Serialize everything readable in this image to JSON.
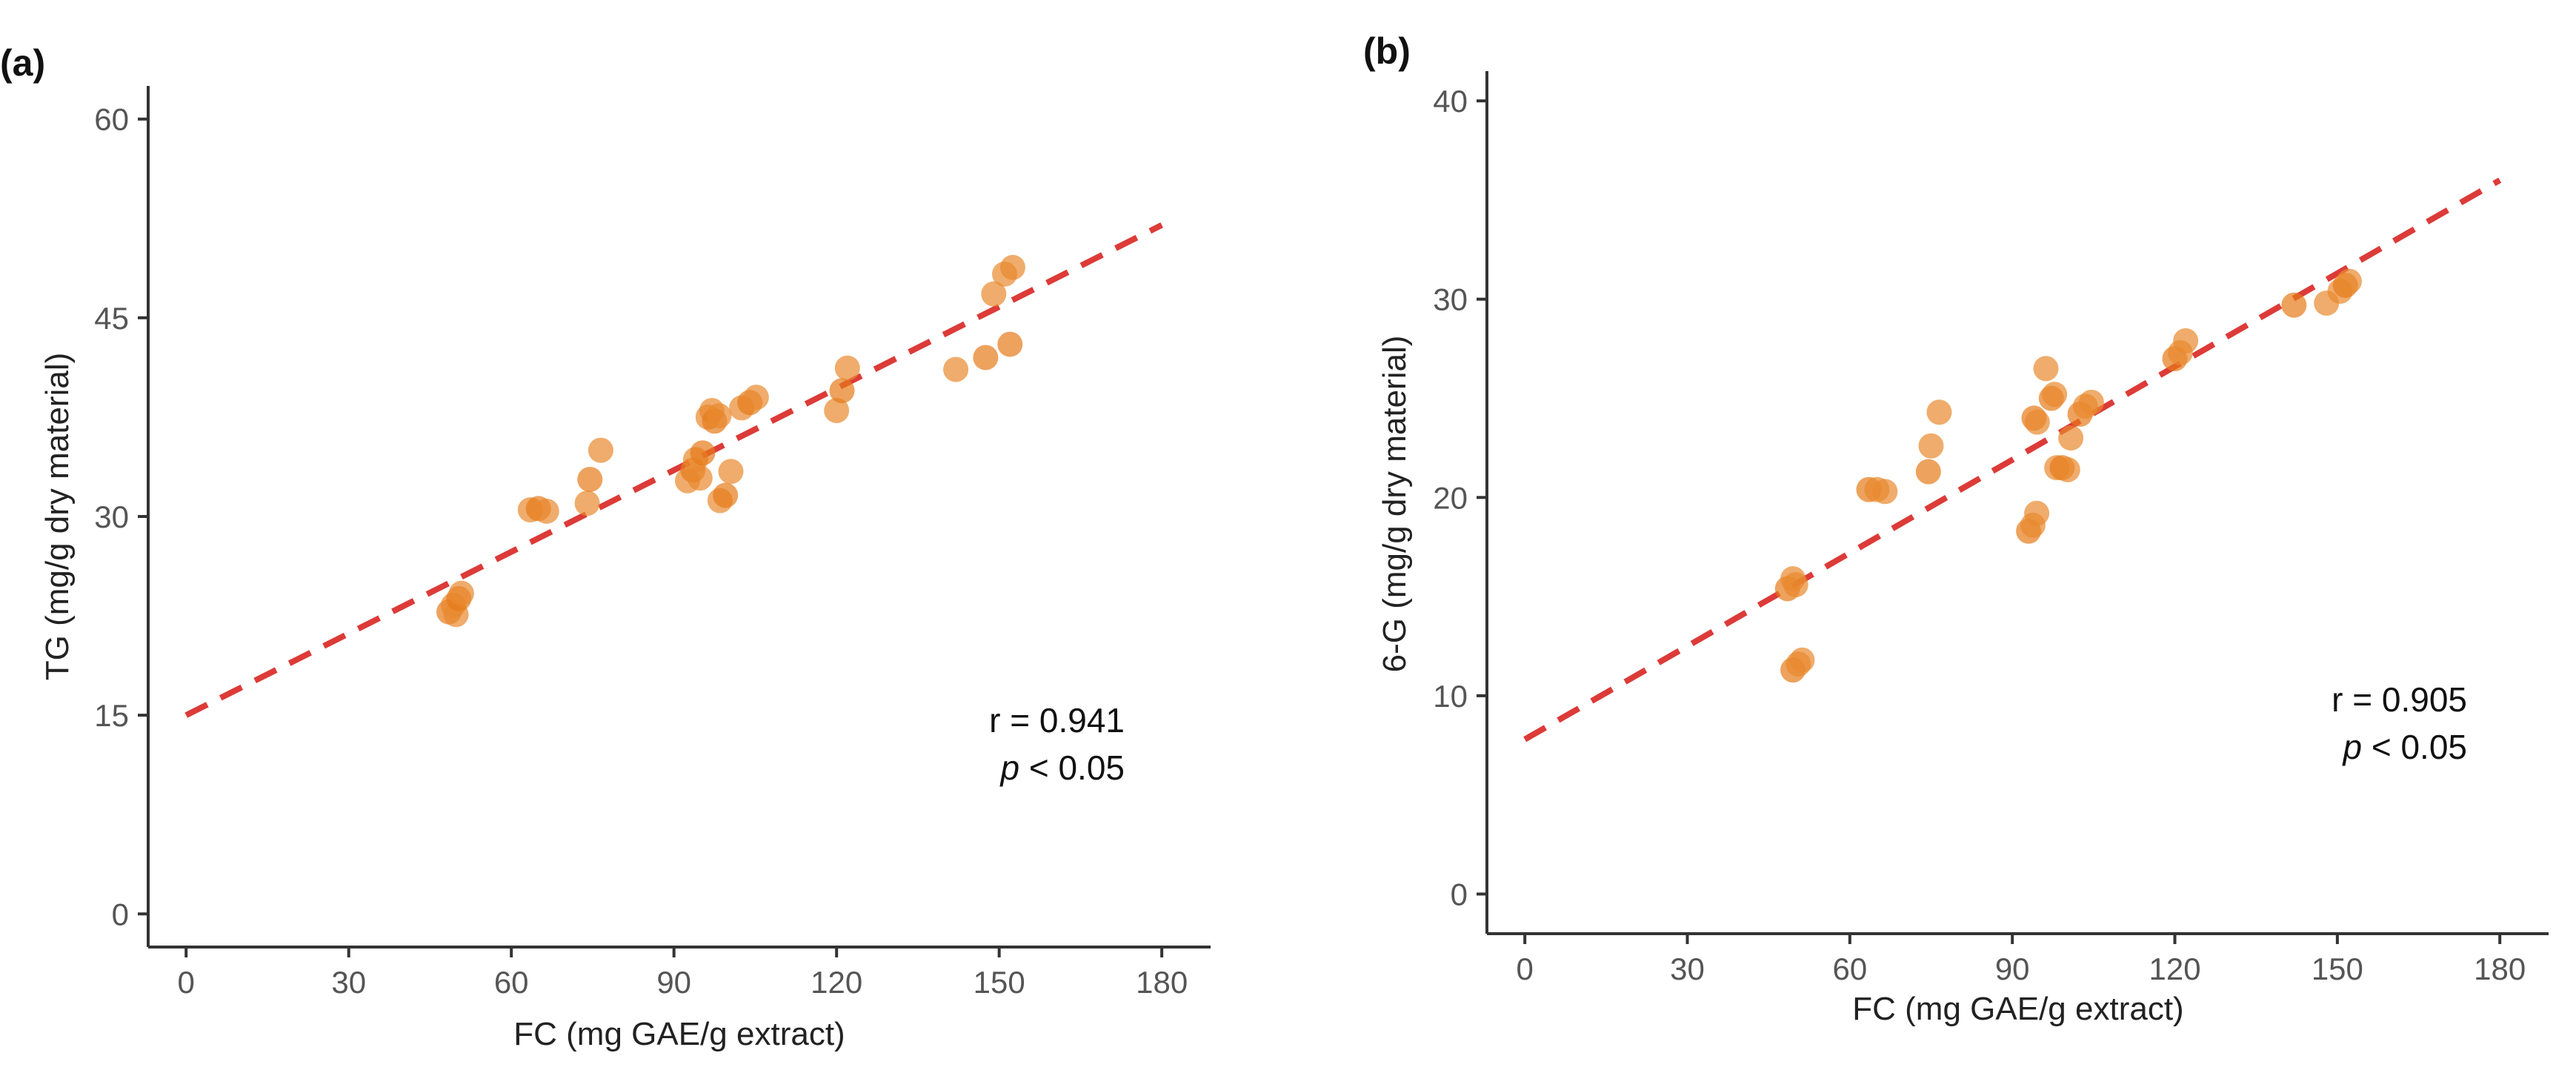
{
  "colors": {
    "point": "#e8892e",
    "point_dark": "#e67a1a",
    "fit_line": "#dc3b38",
    "axis": "#333333",
    "tick_text": "#555555",
    "label_text": "#222222"
  },
  "chart_data": [
    {
      "type": "scatter",
      "panel_label": "(a)",
      "xlabel": "FC (mg GAE/g extract)",
      "ylabel": "TG (mg/g dry material)",
      "xlim": [
        -7,
        189
      ],
      "ylim": [
        -2.5,
        62.5
      ],
      "x_ticks": [
        0,
        30,
        60,
        90,
        120,
        150,
        180
      ],
      "y_ticks": [
        0,
        15,
        30,
        45,
        60
      ],
      "fit_line": {
        "x": [
          0,
          180
        ],
        "y": [
          15,
          52
        ]
      },
      "annotation": {
        "r_text": "r = 0.941",
        "p_symbol": "p",
        "p_rest": " < 0.05"
      },
      "points": [
        {
          "x": 48.5,
          "y": 22.8
        },
        {
          "x": 49.3,
          "y": 23.3
        },
        {
          "x": 49.8,
          "y": 22.6
        },
        {
          "x": 50.3,
          "y": 23.8
        },
        {
          "x": 50.8,
          "y": 24.2
        },
        {
          "x": 63.5,
          "y": 30.5
        },
        {
          "x": 65,
          "y": 30.6
        },
        {
          "x": 66.5,
          "y": 30.4
        },
        {
          "x": 74,
          "y": 31
        },
        {
          "x": 74.5,
          "y": 32.8
        },
        {
          "x": 76.5,
          "y": 35
        },
        {
          "x": 92.5,
          "y": 32.7
        },
        {
          "x": 93.5,
          "y": 33.5
        },
        {
          "x": 94,
          "y": 34.3
        },
        {
          "x": 94.8,
          "y": 32.9
        },
        {
          "x": 95.3,
          "y": 34.8
        },
        {
          "x": 96.3,
          "y": 37.5
        },
        {
          "x": 97,
          "y": 38
        },
        {
          "x": 97.5,
          "y": 37.2
        },
        {
          "x": 98.3,
          "y": 37.6
        },
        {
          "x": 98.5,
          "y": 31.2
        },
        {
          "x": 99.5,
          "y": 31.6
        },
        {
          "x": 100.5,
          "y": 33.4
        },
        {
          "x": 102.5,
          "y": 38.2
        },
        {
          "x": 104,
          "y": 38.6
        },
        {
          "x": 105.2,
          "y": 39
        },
        {
          "x": 120,
          "y": 38
        },
        {
          "x": 121,
          "y": 39.5
        },
        {
          "x": 122,
          "y": 41.2
        },
        {
          "x": 142,
          "y": 41.1
        },
        {
          "x": 147.5,
          "y": 42
        },
        {
          "x": 149,
          "y": 46.8
        },
        {
          "x": 151,
          "y": 48.3
        },
        {
          "x": 152,
          "y": 43
        },
        {
          "x": 152.5,
          "y": 48.8
        }
      ]
    },
    {
      "type": "scatter",
      "panel_label": "(b)",
      "xlabel": "FC (mg GAE/g extract)",
      "ylabel": "6-G (mg/g dry material)",
      "xlim": [
        -7,
        189
      ],
      "ylim": [
        -2,
        41.5
      ],
      "x_ticks": [
        0,
        30,
        60,
        90,
        120,
        150,
        180
      ],
      "y_ticks": [
        0,
        10,
        20,
        30,
        40
      ],
      "fit_line": {
        "x": [
          0,
          180
        ],
        "y": [
          7.8,
          36
        ]
      },
      "annotation": {
        "r_text": "r = 0.905",
        "p_symbol": "p",
        "p_rest": " < 0.05"
      },
      "points": [
        {
          "x": 48.5,
          "y": 15.4
        },
        {
          "x": 49.5,
          "y": 15.9
        },
        {
          "x": 50,
          "y": 15.6
        },
        {
          "x": 49.5,
          "y": 11.3
        },
        {
          "x": 50.5,
          "y": 11.6
        },
        {
          "x": 51.2,
          "y": 11.8
        },
        {
          "x": 63.5,
          "y": 20.4
        },
        {
          "x": 65,
          "y": 20.4
        },
        {
          "x": 66.5,
          "y": 20.3
        },
        {
          "x": 74.5,
          "y": 21.3
        },
        {
          "x": 75,
          "y": 22.6
        },
        {
          "x": 76.5,
          "y": 24.3
        },
        {
          "x": 93,
          "y": 18.3
        },
        {
          "x": 93.8,
          "y": 18.6
        },
        {
          "x": 94.5,
          "y": 19.2
        },
        {
          "x": 94,
          "y": 24
        },
        {
          "x": 94.6,
          "y": 23.8
        },
        {
          "x": 96.2,
          "y": 26.5
        },
        {
          "x": 97.2,
          "y": 25
        },
        {
          "x": 97.8,
          "y": 25.2
        },
        {
          "x": 98.2,
          "y": 21.5
        },
        {
          "x": 99.2,
          "y": 21.5
        },
        {
          "x": 100.2,
          "y": 21.4
        },
        {
          "x": 100.8,
          "y": 23
        },
        {
          "x": 102.5,
          "y": 24.2
        },
        {
          "x": 103.5,
          "y": 24.6
        },
        {
          "x": 104.6,
          "y": 24.8
        },
        {
          "x": 120,
          "y": 27
        },
        {
          "x": 121,
          "y": 27.3
        },
        {
          "x": 122,
          "y": 27.9
        },
        {
          "x": 142,
          "y": 29.7
        },
        {
          "x": 148,
          "y": 29.8
        },
        {
          "x": 150.5,
          "y": 30.4
        },
        {
          "x": 151.5,
          "y": 30.7
        },
        {
          "x": 152.2,
          "y": 30.9
        }
      ]
    }
  ]
}
